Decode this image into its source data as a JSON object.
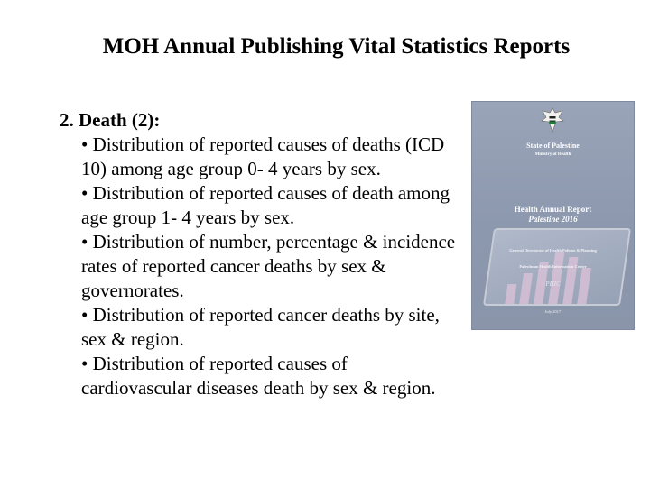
{
  "slide": {
    "title": "MOH Annual Publishing Vital Statistics Reports",
    "section_heading": "2. Death (2):",
    "bullets": [
      "• Distribution of reported causes of deaths (ICD 10) among age group 0- 4 years by sex.",
      "•  Distribution of reported causes of death among age group 1- 4 years by sex.",
      "• Distribution of number, percentage & incidence rates of reported cancer deaths by sex & governorates.",
      "• Distribution of reported cancer deaths by site, sex & region.",
      "• Distribution of reported causes of cardiovascular diseases death by sex & region."
    ]
  },
  "cover": {
    "state": "State of Palestine",
    "ministry": "Ministry of Health",
    "report_title": "Health Annual Report",
    "report_subtitle": "Palestine 2016",
    "directorate": "General Directorate of Health Policies & Planning",
    "center": "Palestinian Health Information Center",
    "logo_text": "PHIC",
    "date": "July 2017"
  }
}
